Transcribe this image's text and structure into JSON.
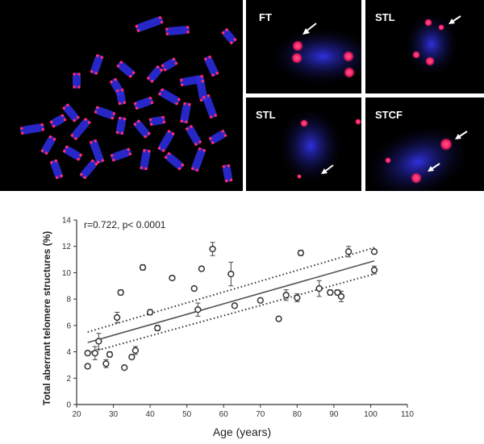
{
  "figure": {
    "microscopy": {
      "panels": [
        {
          "label": "",
          "icon": "metaphase-spread"
        },
        {
          "label": "FT",
          "icon": "chromosome-closeup"
        },
        {
          "label": "STL",
          "icon": "chromosome-closeup"
        },
        {
          "label": "STL",
          "icon": "chromosome-closeup"
        },
        {
          "label": "STCF",
          "icon": "chromosome-closeup"
        }
      ],
      "colors": {
        "chromosome": "#2a2ad8",
        "telomere": "#ff2a6d",
        "background": "#000000",
        "arrow": "#ffffff"
      }
    }
  },
  "chart_data": {
    "type": "scatter",
    "annotation": "r=0.722, p< 0.0001",
    "xlabel": "Age (years)",
    "ylabel": "Total aberrant telomere structures (%)",
    "xlim": [
      20,
      110
    ],
    "ylim": [
      0,
      14
    ],
    "xticks": [
      "20",
      "30",
      "40",
      "50",
      "60",
      "70",
      "80",
      "90",
      "100",
      "110"
    ],
    "yticks": [
      "0",
      "2",
      "4",
      "6",
      "8",
      "10",
      "12",
      "14"
    ],
    "grid": false,
    "points": [
      {
        "x": 23,
        "y": 3.9,
        "err": 0.15
      },
      {
        "x": 23,
        "y": 2.9,
        "err": 0.15
      },
      {
        "x": 25,
        "y": 3.9,
        "err": 0.5
      },
      {
        "x": 26,
        "y": 4.8,
        "err": 0.6
      },
      {
        "x": 28,
        "y": 3.1,
        "err": 0.3
      },
      {
        "x": 29,
        "y": 3.8,
        "err": 0.2
      },
      {
        "x": 31,
        "y": 6.6,
        "err": 0.4
      },
      {
        "x": 32,
        "y": 8.5,
        "err": 0.2
      },
      {
        "x": 33,
        "y": 2.8,
        "err": 0.1
      },
      {
        "x": 35,
        "y": 3.6,
        "err": 0.15
      },
      {
        "x": 36,
        "y": 4.1,
        "err": 0.3
      },
      {
        "x": 38,
        "y": 10.4,
        "err": 0.2
      },
      {
        "x": 40,
        "y": 7.0,
        "err": 0.2
      },
      {
        "x": 42,
        "y": 5.8,
        "err": 0.2
      },
      {
        "x": 46,
        "y": 9.6,
        "err": 0.1
      },
      {
        "x": 52,
        "y": 8.8,
        "err": 0.15
      },
      {
        "x": 53,
        "y": 7.2,
        "err": 0.5
      },
      {
        "x": 54,
        "y": 10.3,
        "err": 0.15
      },
      {
        "x": 57,
        "y": 11.8,
        "err": 0.5
      },
      {
        "x": 62,
        "y": 9.9,
        "err": 0.9
      },
      {
        "x": 63,
        "y": 7.5,
        "err": 0.1
      },
      {
        "x": 70,
        "y": 7.9,
        "err": 0.1
      },
      {
        "x": 75,
        "y": 6.5,
        "err": 0.1
      },
      {
        "x": 77,
        "y": 8.3,
        "err": 0.4
      },
      {
        "x": 80,
        "y": 8.1,
        "err": 0.3
      },
      {
        "x": 81,
        "y": 11.5,
        "err": 0.2
      },
      {
        "x": 86,
        "y": 8.8,
        "err": 0.6
      },
      {
        "x": 89,
        "y": 8.5,
        "err": 0.2
      },
      {
        "x": 91,
        "y": 8.5,
        "err": 0.2
      },
      {
        "x": 92,
        "y": 8.2,
        "err": 0.4
      },
      {
        "x": 94,
        "y": 11.6,
        "err": 0.4
      },
      {
        "x": 101,
        "y": 11.6,
        "err": 0.1
      },
      {
        "x": 101,
        "y": 10.2,
        "err": 0.3
      }
    ],
    "regression": {
      "x": [
        23,
        101
      ],
      "y": [
        4.7,
        10.9
      ]
    },
    "ci_upper": {
      "x": [
        23,
        101
      ],
      "y": [
        5.5,
        11.9
      ]
    },
    "ci_lower": {
      "x": [
        23,
        101
      ],
      "y": [
        3.9,
        9.9
      ]
    }
  }
}
